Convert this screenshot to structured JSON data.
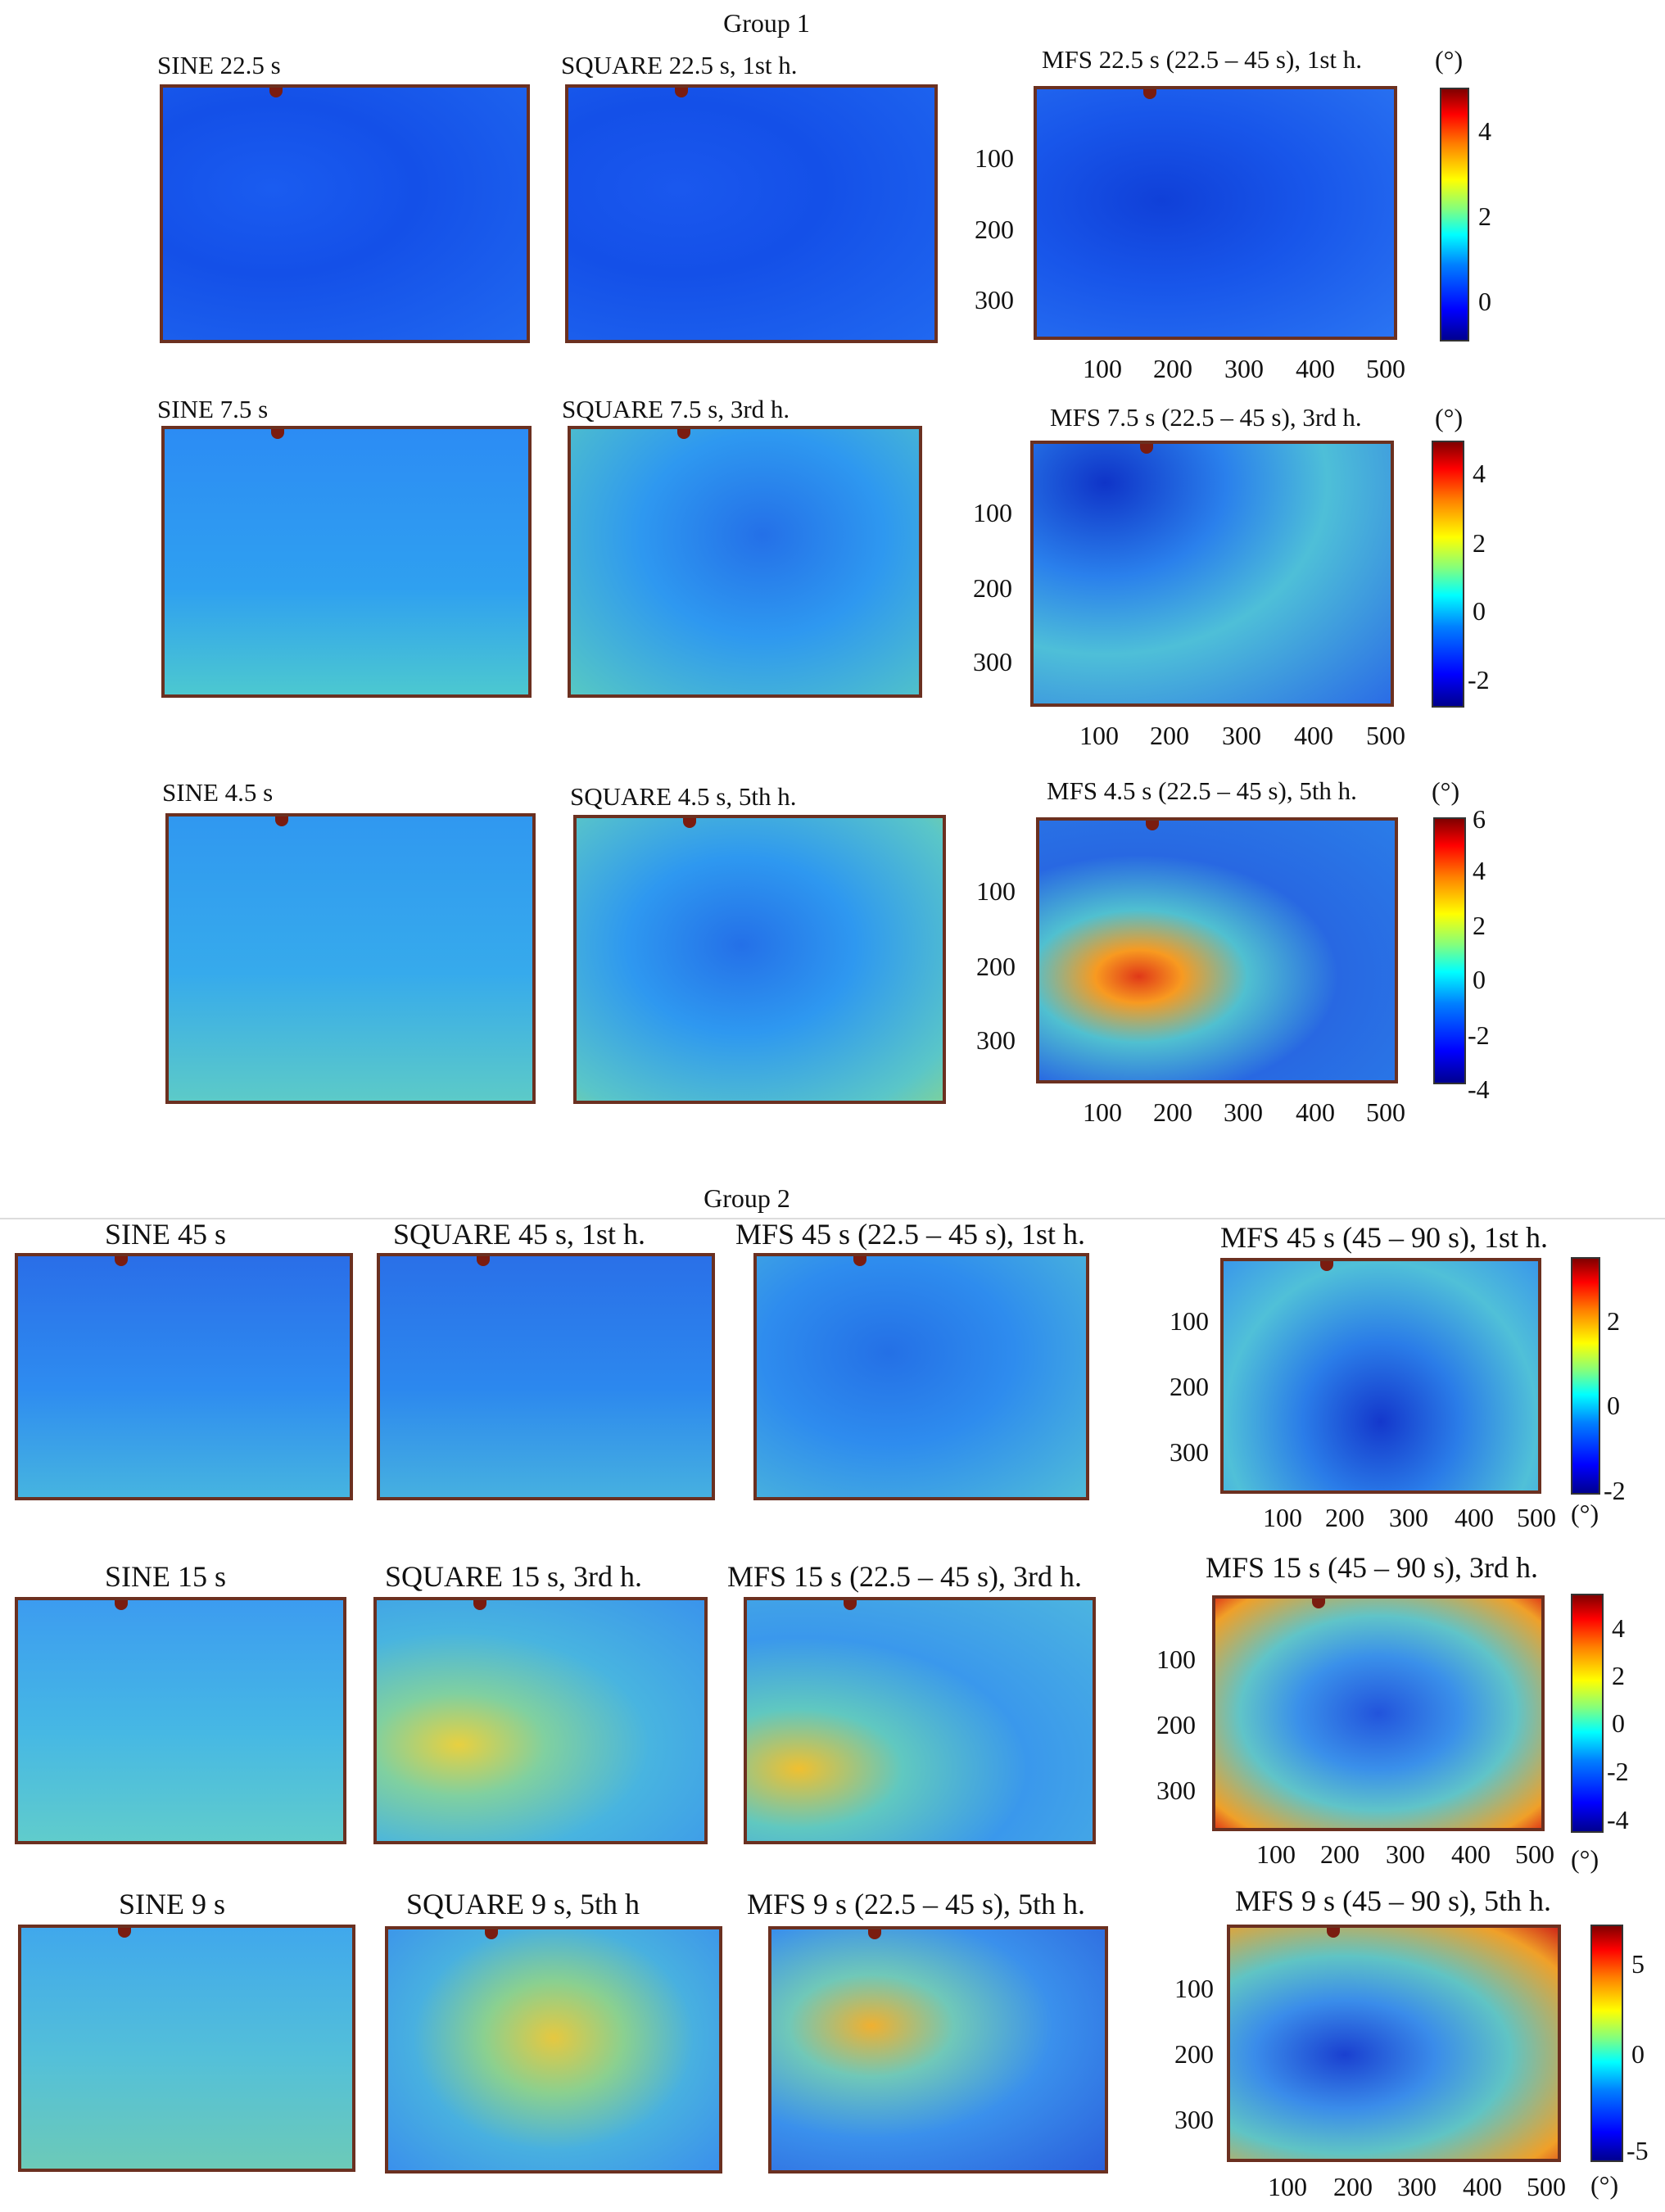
{
  "figure": {
    "group1_title": "Group 1",
    "group2_title": "Group 2",
    "unit_label": "(°)",
    "colormap": [
      "#00008f",
      "#0000ff",
      "#00ffff",
      "#ffff00",
      "#ff0000",
      "#800000"
    ]
  },
  "group1": {
    "row1": {
      "sine_title": "SINE 22.5 s",
      "square_title": "SQUARE 22.5 s, 1st h.",
      "mfs_title": "MFS 22.5 s (22.5 – 45 s), 1st h.",
      "y_ticks": [
        "100",
        "200",
        "300"
      ],
      "x_ticks": [
        "100",
        "200",
        "300",
        "400",
        "500"
      ],
      "cbar_ticks": [
        "4",
        "2",
        "0"
      ]
    },
    "row2": {
      "sine_title": "SINE 7.5 s",
      "square_title": "SQUARE 7.5 s, 3rd h.",
      "mfs_title": "MFS 7.5 s (22.5 – 45 s), 3rd h.",
      "y_ticks": [
        "100",
        "200",
        "300"
      ],
      "x_ticks": [
        "100",
        "200",
        "300",
        "400",
        "500"
      ],
      "cbar_ticks": [
        "4",
        "2",
        "0",
        "-2"
      ]
    },
    "row3": {
      "sine_title": "SINE 4.5 s",
      "square_title": "SQUARE 4.5 s, 5th h.",
      "mfs_title": "MFS 4.5 s (22.5 – 45 s), 5th h.",
      "y_ticks": [
        "100",
        "200",
        "300"
      ],
      "x_ticks": [
        "100",
        "200",
        "300",
        "400",
        "500"
      ],
      "cbar_ticks": [
        "6",
        "4",
        "2",
        "0",
        "-2",
        "-4"
      ]
    }
  },
  "group2": {
    "row1": {
      "sine_title": "SINE 45 s",
      "square_title": "SQUARE 45 s, 1st h.",
      "mfs1_title": "MFS 45 s (22.5 – 45 s), 1st h.",
      "mfs2_title": "MFS 45 s (45 – 90 s), 1st h.",
      "y_ticks": [
        "100",
        "200",
        "300"
      ],
      "x_ticks": [
        "100",
        "200",
        "300",
        "400",
        "500"
      ],
      "cbar_ticks": [
        "2",
        "0",
        "-2"
      ]
    },
    "row2": {
      "sine_title": "SINE 15 s",
      "square_title": "SQUARE 15 s, 3rd h.",
      "mfs1_title": "MFS 15 s (22.5 – 45 s), 3rd h.",
      "mfs2_title": "MFS 15 s (45 – 90 s), 3rd h.",
      "y_ticks": [
        "100",
        "200",
        "300"
      ],
      "x_ticks": [
        "100",
        "200",
        "300",
        "400",
        "500"
      ],
      "cbar_ticks": [
        "4",
        "2",
        "0",
        "-2",
        "-4"
      ]
    },
    "row3": {
      "sine_title": "SINE 9 s",
      "square_title": "SQUARE 9 s, 5th h",
      "mfs1_title": "MFS 9 s (22.5 – 45 s), 5th h.",
      "mfs2_title": "MFS 9 s (45 – 90 s), 5th h.",
      "y_ticks": [
        "100",
        "200",
        "300"
      ],
      "x_ticks": [
        "100",
        "200",
        "300",
        "400",
        "500"
      ],
      "cbar_ticks": [
        "5",
        "0",
        "-5"
      ]
    }
  }
}
